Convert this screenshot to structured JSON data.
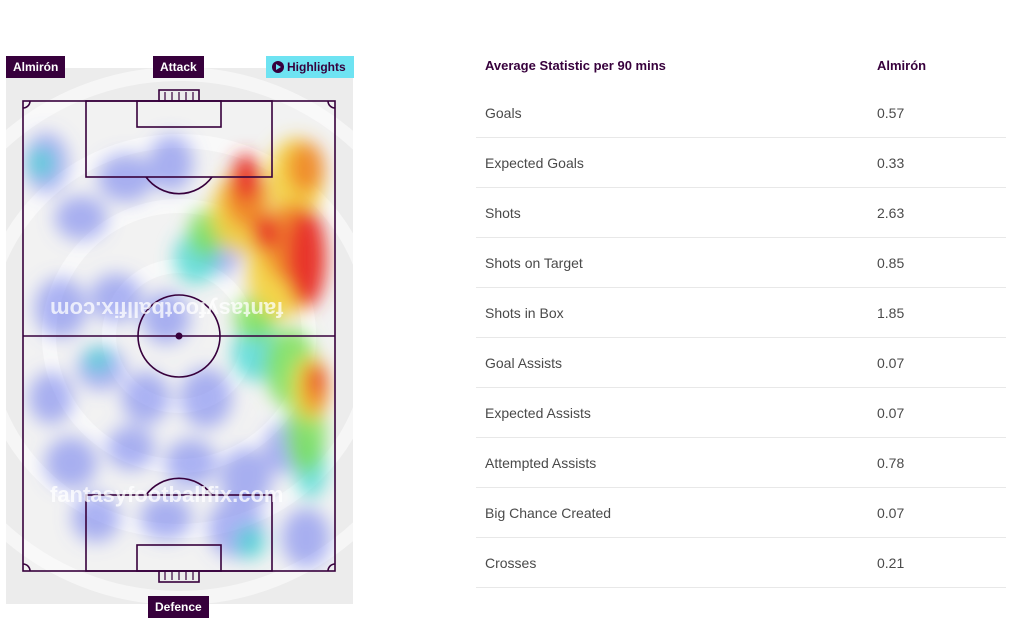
{
  "heatmap": {
    "player_label": "Almirón",
    "attack_label": "Attack",
    "defence_label": "Defence",
    "highlights_label": "Highlights",
    "highlights_icon": "play-icon",
    "watermark_top": "fantasyfootballfix.com",
    "watermark_bottom": "fantasyfootballfix.com",
    "colors": {
      "brand": "#37003c",
      "highlights": "#6ee3f2",
      "pitch_bg": "#ececec"
    }
  },
  "stats": {
    "header_stat": "Average Statistic per 90 mins",
    "header_player": "Almirón",
    "rows": [
      {
        "label": "Goals",
        "value": "0.57"
      },
      {
        "label": "Expected Goals",
        "value": "0.33"
      },
      {
        "label": "Shots",
        "value": "2.63"
      },
      {
        "label": "Shots on Target",
        "value": "0.85"
      },
      {
        "label": "Shots in Box",
        "value": "1.85"
      },
      {
        "label": "Goal Assists",
        "value": "0.07"
      },
      {
        "label": "Expected Assists",
        "value": "0.07"
      },
      {
        "label": "Attempted Assists",
        "value": "0.78"
      },
      {
        "label": "Big Chance Created",
        "value": "0.07"
      },
      {
        "label": "Crosses",
        "value": "0.21"
      }
    ]
  }
}
